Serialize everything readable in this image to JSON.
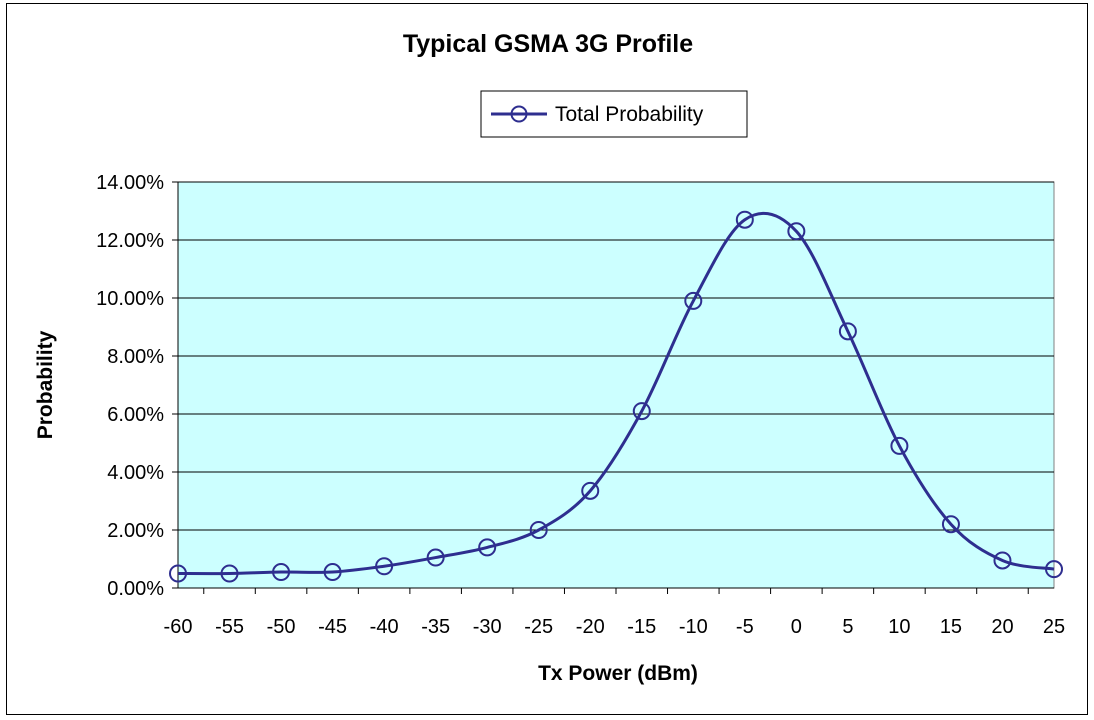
{
  "chart_data": {
    "type": "line",
    "title": "Typical GSMA 3G Profile",
    "xlabel": "Tx Power (dBm)",
    "ylabel": "Probability",
    "x": [
      -60,
      -55,
      -50,
      -45,
      -40,
      -35,
      -30,
      -25,
      -20,
      -15,
      -10,
      -5,
      0,
      5,
      10,
      15,
      20,
      25
    ],
    "series": [
      {
        "name": "Total Probability",
        "values": [
          0.5,
          0.5,
          0.55,
          0.55,
          0.75,
          1.05,
          1.4,
          2.0,
          3.35,
          6.1,
          9.9,
          12.7,
          12.3,
          8.85,
          4.9,
          2.2,
          0.95,
          0.65
        ]
      }
    ],
    "ylim": [
      0,
      14
    ],
    "yticks": [
      0,
      2,
      4,
      6,
      8,
      10,
      12,
      14
    ],
    "ytick_labels": [
      "0.00%",
      "2.00%",
      "4.00%",
      "6.00%",
      "8.00%",
      "10.00%",
      "12.00%",
      "14.00%"
    ],
    "xtick_labels": [
      "-60",
      "-55",
      "-50",
      "-45",
      "-40",
      "-35",
      "-30",
      "-25",
      "-20",
      "-15",
      "-10",
      "-5",
      "0",
      "5",
      "10",
      "15",
      "20",
      "25"
    ],
    "grid": "horizontal",
    "legend_position": "top-center",
    "colors": {
      "line": "#2e2e8f",
      "plot_background": "#ccffff",
      "gridline": "#000000"
    }
  }
}
